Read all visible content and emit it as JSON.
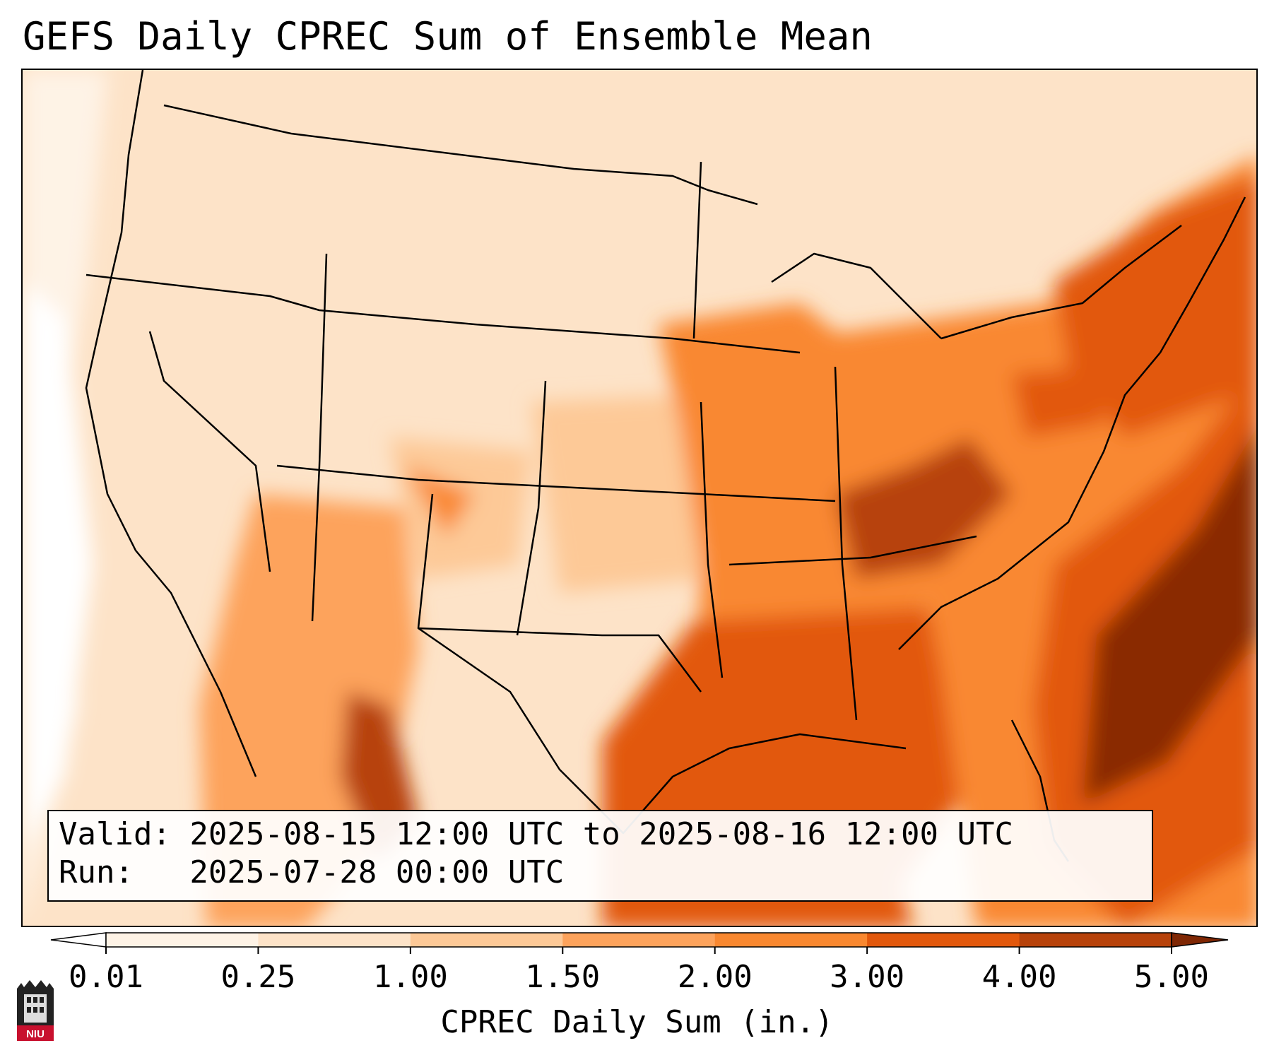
{
  "title": "GEFS Daily CPREC Sum of Ensemble Mean",
  "info": {
    "valid": "Valid: 2025-08-15 12:00 UTC to 2025-08-16 12:00 UTC",
    "run": "Run:   2025-07-28 00:00 UTC"
  },
  "colorbar": {
    "label": "CPREC Daily Sum (in.)",
    "levels": [
      "0.01",
      "0.25",
      "1.00",
      "1.50",
      "2.00",
      "3.00",
      "4.00",
      "5.00"
    ],
    "colors": [
      "#fef3e6",
      "#fde3c8",
      "#fdc997",
      "#fda35c",
      "#f98830",
      "#e2580c",
      "#b7420a",
      "#8a2c04"
    ],
    "under_color": "#ffffff",
    "over_color": "#7f2704"
  },
  "logo": {
    "text": "NIU"
  },
  "map": {
    "region": "Contiguous United States",
    "field": "CPREC daily sum, ensemble mean"
  }
}
